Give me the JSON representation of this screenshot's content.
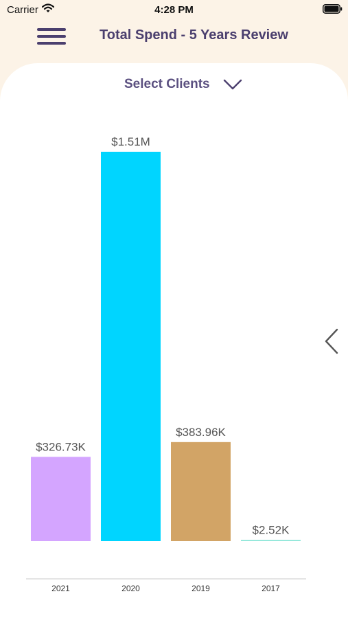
{
  "status_bar": {
    "carrier": "Carrier",
    "time": "4:28 PM"
  },
  "nav": {
    "title": "Total Spend - 5 Years Review",
    "menu_icon": "hamburger-menu-icon"
  },
  "filter": {
    "label": "Select Clients",
    "icon": "chevron-down-icon"
  },
  "pager": {
    "icon": "chevron-left-icon"
  },
  "colors": {
    "background": "#fcf3e7",
    "card": "#ffffff",
    "title": "#4b3f6e",
    "axis": "#c8c8c8"
  },
  "chart_data": {
    "type": "bar",
    "categories": [
      "2021",
      "2020",
      "2019",
      "2017"
    ],
    "values": [
      326730,
      1510000,
      383960,
      2520
    ],
    "value_labels": [
      "$326.73K",
      "$1.51M",
      "$383.96K",
      "$2.52K"
    ],
    "colors": [
      "#d4a5ff",
      "#00d5ff",
      "#d2a466",
      "#7fe3d3"
    ],
    "ylim": [
      0,
      1510000
    ],
    "grid": false,
    "legend": "none"
  }
}
